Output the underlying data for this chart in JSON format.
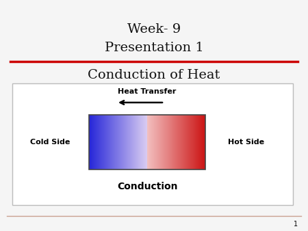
{
  "background_color": "#e8e8e8",
  "slide_background": "#f5f5f5",
  "title_line1": "Week- 9",
  "title_line2": "Presentation 1",
  "title_line3": "Conduction of Heat",
  "title_fontsize": 14,
  "title_color": "#111111",
  "red_line_color": "#cc0000",
  "red_line2_color": "#c8a090",
  "box_bg": "#ffffff",
  "box_edge_color": "#bbbbbb",
  "heat_transfer_label": "Heat Transfer",
  "cold_side_label": "Cold Side",
  "hot_side_label": "Hot Side",
  "conduction_label": "Conduction",
  "label_fontsize": 8,
  "conduction_fontsize": 10,
  "heat_transfer_fontsize": 8,
  "page_number": "1",
  "bottom_line_color": "#c8a090"
}
